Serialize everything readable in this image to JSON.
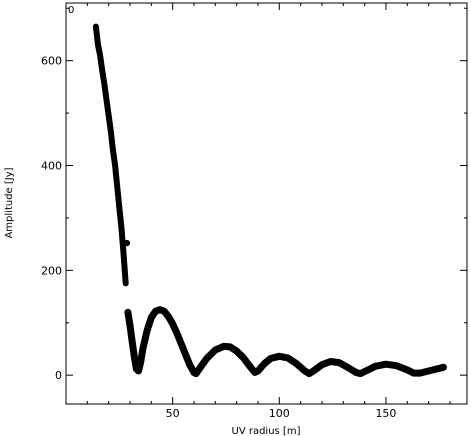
{
  "chart_data": {
    "type": "scatter",
    "corner_label": "0",
    "xlabel": "UV radius [m]",
    "ylabel": "Amplitude [Jy]",
    "xlim": [
      0,
      188
    ],
    "ylim": [
      -55,
      710
    ],
    "x_ticks": [
      50,
      100,
      150
    ],
    "y_ticks": [
      0,
      200,
      400,
      600
    ],
    "grid": false,
    "legend": "none",
    "color": "#000000",
    "series": [
      {
        "band": true,
        "points": [
          [
            14.0,
            665
          ],
          [
            15.0,
            630
          ],
          [
            16.0,
            610
          ],
          [
            17.0,
            580
          ],
          [
            18.0,
            555
          ],
          [
            19.0,
            525
          ],
          [
            20.0,
            495
          ],
          [
            21.0,
            465
          ],
          [
            22.0,
            430
          ],
          [
            23.0,
            400
          ],
          [
            24.0,
            360
          ],
          [
            25.0,
            320
          ],
          [
            26.0,
            280
          ],
          [
            27.0,
            230
          ],
          [
            28.0,
            175
          ]
        ]
      },
      {
        "band": true,
        "points": [
          [
            29.0,
            120
          ],
          [
            30.0,
            95
          ],
          [
            31.0,
            65
          ],
          [
            32.0,
            35
          ],
          [
            33.0,
            12
          ],
          [
            34.0,
            8
          ],
          [
            35.0,
            25
          ],
          [
            36.0,
            50
          ],
          [
            38.0,
            85
          ],
          [
            40.0,
            110
          ],
          [
            42.0,
            122
          ],
          [
            44.0,
            125
          ],
          [
            46.0,
            122
          ],
          [
            48.0,
            112
          ],
          [
            50.0,
            98
          ],
          [
            52.0,
            80
          ],
          [
            54.0,
            60
          ],
          [
            56.0,
            40
          ],
          [
            58.0,
            20
          ],
          [
            60.0,
            5
          ],
          [
            61.0,
            3
          ],
          [
            63.0,
            15
          ],
          [
            66.0,
            32
          ],
          [
            70.0,
            48
          ],
          [
            74.0,
            55
          ],
          [
            77.0,
            54
          ],
          [
            80.0,
            46
          ],
          [
            83.0,
            34
          ],
          [
            86.0,
            18
          ],
          [
            88.5,
            5
          ],
          [
            90.0,
            8
          ],
          [
            93.0,
            22
          ],
          [
            96.0,
            32
          ],
          [
            100.0,
            36
          ],
          [
            104.0,
            33
          ],
          [
            108.0,
            22
          ],
          [
            112.0,
            8
          ],
          [
            114.0,
            3
          ],
          [
            116.0,
            8
          ],
          [
            120.0,
            20
          ],
          [
            124.0,
            26
          ],
          [
            128.0,
            24
          ],
          [
            132.0,
            15
          ],
          [
            136.0,
            5
          ],
          [
            138.0,
            3
          ],
          [
            141.0,
            9
          ],
          [
            145.0,
            17
          ],
          [
            150.0,
            21
          ],
          [
            155.0,
            18
          ],
          [
            160.0,
            10
          ],
          [
            163.0,
            4
          ],
          [
            166.0,
            4
          ],
          [
            170.0,
            8
          ],
          [
            174.0,
            12
          ],
          [
            177.0,
            15
          ]
        ]
      },
      {
        "band": false,
        "points": [
          [
            28.5,
            252
          ]
        ]
      }
    ]
  }
}
